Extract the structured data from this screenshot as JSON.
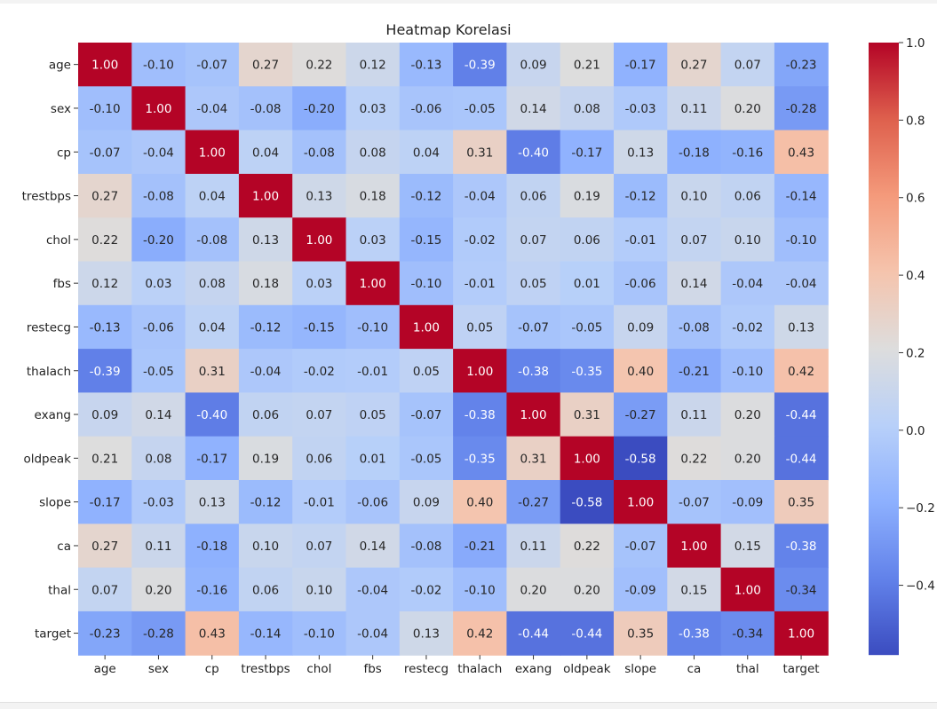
{
  "chart_data": {
    "type": "heatmap",
    "title": "Heatmap Korelasi",
    "xlabel": "",
    "ylabel": "",
    "labels": [
      "age",
      "sex",
      "cp",
      "trestbps",
      "chol",
      "fbs",
      "restecg",
      "thalach",
      "exang",
      "oldpeak",
      "slope",
      "ca",
      "thal",
      "target"
    ],
    "matrix": [
      [
        1.0,
        -0.1,
        -0.07,
        0.27,
        0.22,
        0.12,
        -0.13,
        -0.39,
        0.09,
        0.21,
        -0.17,
        0.27,
        0.07,
        -0.23
      ],
      [
        -0.1,
        1.0,
        -0.04,
        -0.08,
        -0.2,
        0.03,
        -0.06,
        -0.05,
        0.14,
        0.08,
        -0.03,
        0.11,
        0.2,
        -0.28
      ],
      [
        -0.07,
        -0.04,
        1.0,
        0.04,
        -0.08,
        0.08,
        0.04,
        0.31,
        -0.4,
        -0.17,
        0.13,
        -0.18,
        -0.16,
        0.43
      ],
      [
        0.27,
        -0.08,
        0.04,
        1.0,
        0.13,
        0.18,
        -0.12,
        -0.04,
        0.06,
        0.19,
        -0.12,
        0.1,
        0.06,
        -0.14
      ],
      [
        0.22,
        -0.2,
        -0.08,
        0.13,
        1.0,
        0.03,
        -0.15,
        -0.02,
        0.07,
        0.06,
        -0.01,
        0.07,
        0.1,
        -0.1
      ],
      [
        0.12,
        0.03,
        0.08,
        0.18,
        0.03,
        1.0,
        -0.1,
        -0.01,
        0.05,
        0.01,
        -0.06,
        0.14,
        -0.04,
        -0.04
      ],
      [
        -0.13,
        -0.06,
        0.04,
        -0.12,
        -0.15,
        -0.1,
        1.0,
        0.05,
        -0.07,
        -0.05,
        0.09,
        -0.08,
        -0.02,
        0.13
      ],
      [
        -0.39,
        -0.05,
        0.31,
        -0.04,
        -0.02,
        -0.01,
        0.05,
        1.0,
        -0.38,
        -0.35,
        0.4,
        -0.21,
        -0.1,
        0.42
      ],
      [
        0.09,
        0.14,
        -0.4,
        0.06,
        0.07,
        0.05,
        -0.07,
        -0.38,
        1.0,
        0.31,
        -0.27,
        0.11,
        0.2,
        -0.44
      ],
      [
        0.21,
        0.08,
        -0.17,
        0.19,
        0.06,
        0.01,
        -0.05,
        -0.35,
        0.31,
        1.0,
        -0.58,
        0.22,
        0.2,
        -0.44
      ],
      [
        -0.17,
        -0.03,
        0.13,
        -0.12,
        -0.01,
        -0.06,
        0.09,
        0.4,
        -0.27,
        -0.58,
        1.0,
        -0.07,
        -0.09,
        0.35
      ],
      [
        0.27,
        0.11,
        -0.18,
        0.1,
        0.07,
        0.14,
        -0.08,
        -0.21,
        0.11,
        0.22,
        -0.07,
        1.0,
        0.15,
        -0.38
      ],
      [
        0.07,
        0.2,
        -0.16,
        0.06,
        0.1,
        -0.04,
        -0.02,
        -0.1,
        0.2,
        0.2,
        -0.09,
        0.15,
        1.0,
        -0.34
      ],
      [
        -0.23,
        -0.28,
        0.43,
        -0.14,
        -0.1,
        -0.04,
        0.13,
        0.42,
        -0.44,
        -0.44,
        0.35,
        -0.38,
        -0.34,
        1.0
      ]
    ],
    "colormap": "coolwarm",
    "vmin": -0.58,
    "vmax": 1.0,
    "colorbar_ticks": [
      1.0,
      0.8,
      0.6,
      0.4,
      0.2,
      0.0,
      -0.2,
      -0.4
    ],
    "colorbar_tick_labels": [
      "1.0",
      "0.8",
      "0.6",
      "0.4",
      "0.2",
      "0.0",
      "−0.2",
      "−0.4"
    ],
    "value_format": "2 decimals"
  }
}
